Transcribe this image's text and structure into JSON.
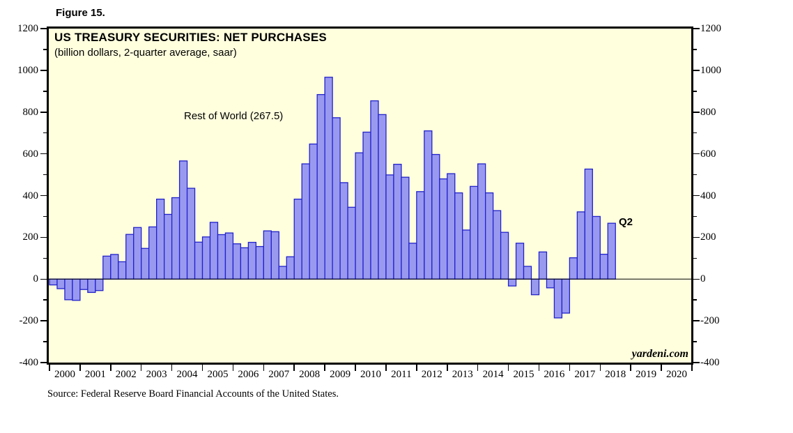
{
  "figure_label": "Figure 15.",
  "chart": {
    "title": "US TREASURY SECURITIES: NET PURCHASES",
    "subtitle": "(billion dollars, 2-quarter average, saar)",
    "annotation": "Rest of World (267.5)",
    "last_point_label": "Q2",
    "watermark": "yardeni.com",
    "colors": {
      "plot_background": "#FFFFDE",
      "bar_fill": "#9999F0",
      "bar_edge": "#2222CC",
      "annotation_blue": "#2222CC",
      "border": "#000000"
    }
  },
  "source_note": "Source: Federal Reserve Board Financial Accounts of the United States.",
  "chart_data": {
    "type": "bar",
    "title": "US TREASURY SECURITIES: NET PURCHASES",
    "subtitle": "(billion dollars, 2-quarter average, saar)",
    "series_name": "Rest of World",
    "frequency": "quarterly",
    "start": "2000Q1",
    "end": "2018Q2",
    "last_value": 267.5,
    "values": [
      -28,
      -46,
      -99,
      -102,
      -50,
      -64,
      -55,
      110,
      118,
      83,
      214,
      247,
      147,
      250,
      383,
      310,
      390,
      566,
      435,
      177,
      202,
      272,
      213,
      221,
      169,
      150,
      176,
      156,
      231,
      227,
      61,
      107,
      383,
      552,
      647,
      884,
      967,
      773,
      462,
      344,
      605,
      704,
      854,
      788,
      499,
      550,
      488,
      172,
      419,
      710,
      597,
      480,
      505,
      413,
      235,
      444,
      552,
      413,
      328,
      224,
      -33,
      172,
      61,
      -75,
      130,
      -42,
      -186,
      -163,
      102,
      322,
      527,
      300,
      119,
      267.5
    ],
    "ylim": [
      -400,
      1200
    ],
    "ytick_major": 200,
    "ytick_minor": 100,
    "ytick_labels": [
      "-400",
      "-200",
      "0",
      "200",
      "400",
      "600",
      "800",
      "1000",
      "1200"
    ],
    "x_year_labels": [
      "2000",
      "2001",
      "2002",
      "2003",
      "2004",
      "2005",
      "2006",
      "2007",
      "2008",
      "2009",
      "2010",
      "2011",
      "2012",
      "2013",
      "2014",
      "2015",
      "2016",
      "2017",
      "2018",
      "2019",
      "2020"
    ],
    "grid": false,
    "legend": "none",
    "zero_line": true
  }
}
